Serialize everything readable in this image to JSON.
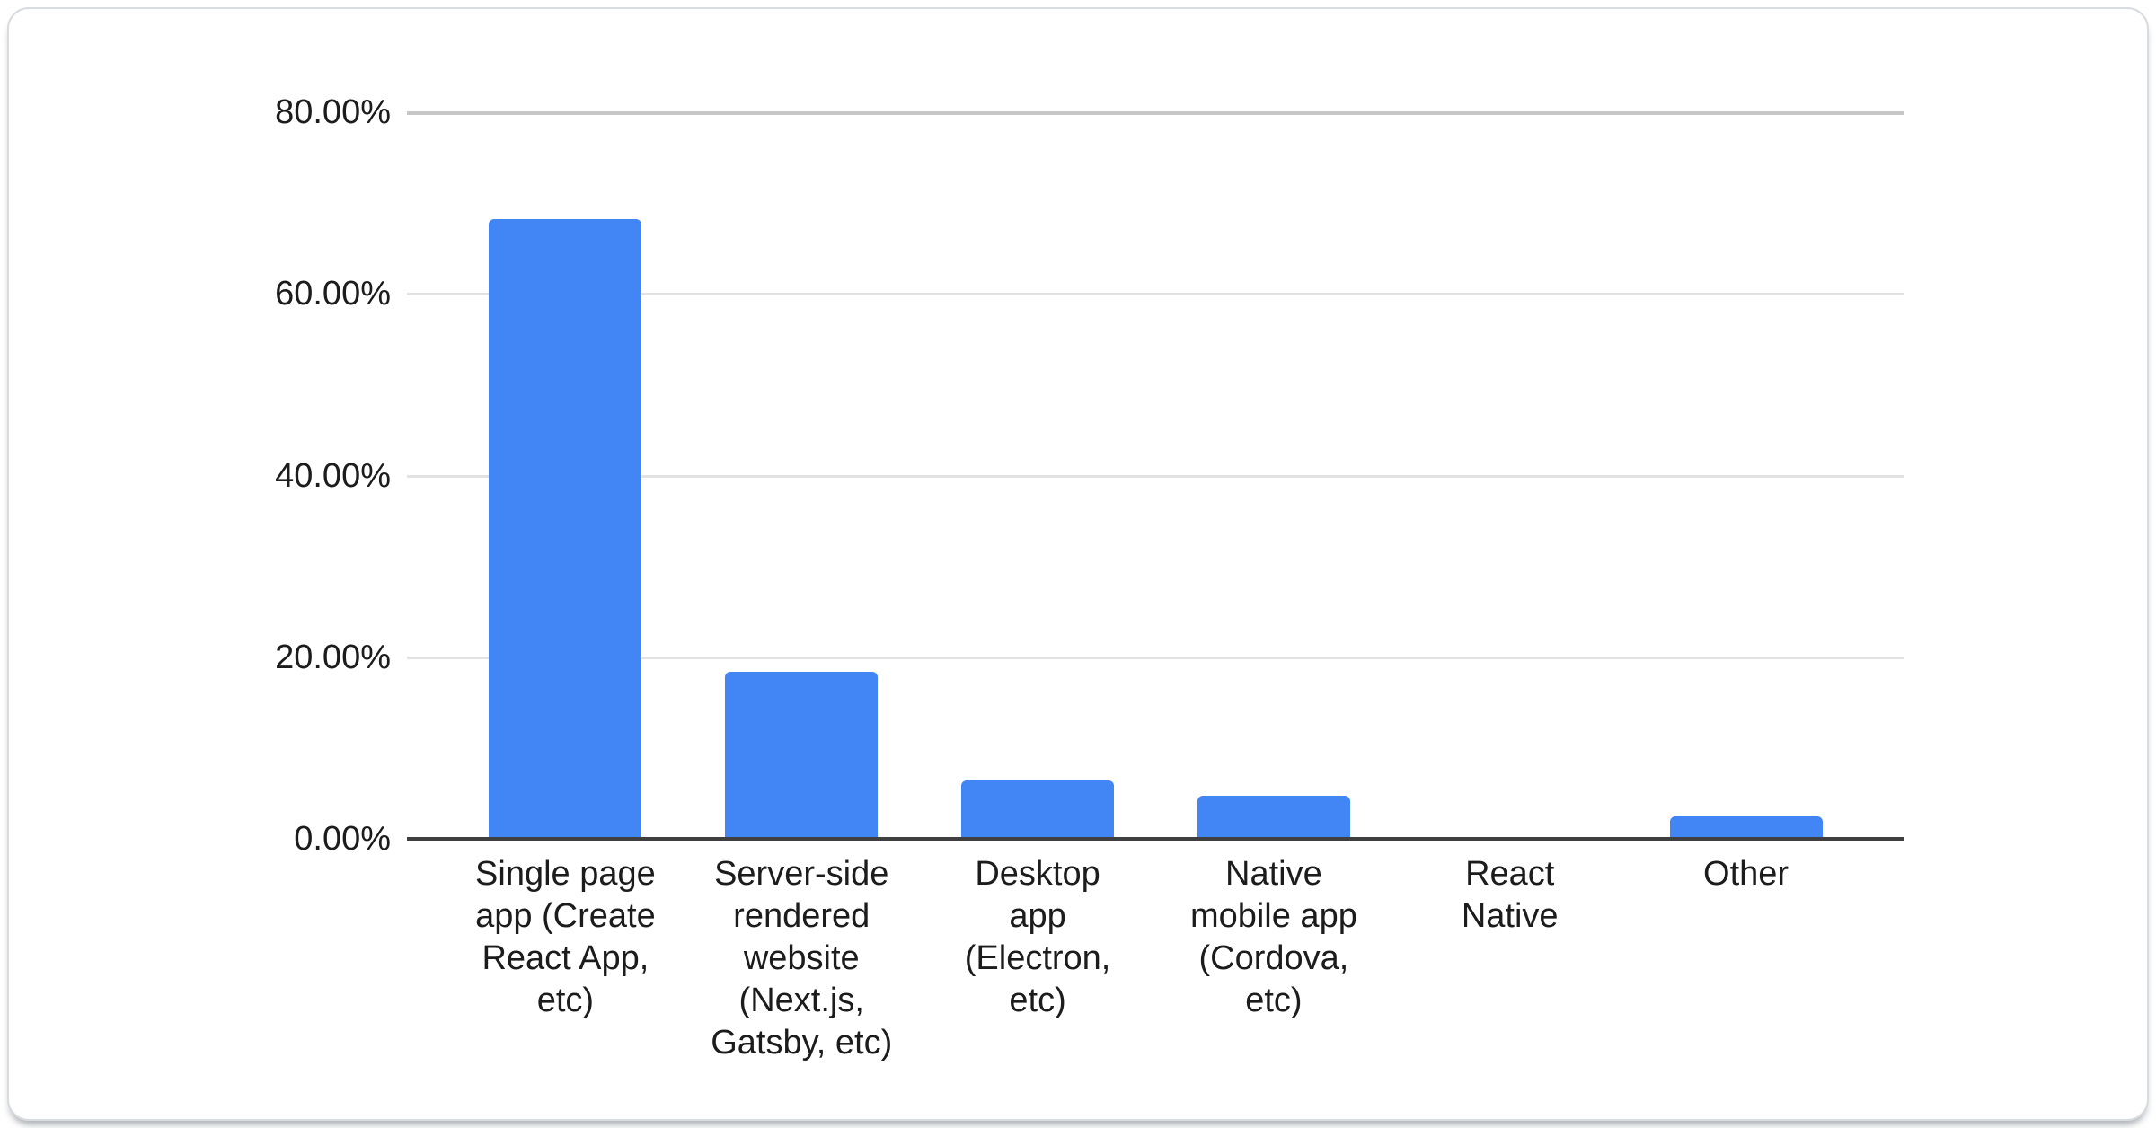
{
  "chart_data": {
    "type": "bar",
    "title": "",
    "xlabel": "",
    "ylabel": "",
    "categories": [
      "Single page app (Create React App, etc)",
      "Server-side rendered website (Next.js, Gatsby, etc)",
      "Desktop app (Electron, etc)",
      "Native mobile app (Cordova, etc)",
      "React Native",
      "Other"
    ],
    "values": [
      68.2,
      18.4,
      6.4,
      4.7,
      0,
      2.5
    ],
    "value_unit": "percent",
    "ylim": [
      0,
      80
    ],
    "yticks": [
      {
        "label": "80.00%",
        "value": 80
      },
      {
        "label": "60.00%",
        "value": 60
      },
      {
        "label": "40.00%",
        "value": 40
      },
      {
        "label": "20.00%",
        "value": 20
      },
      {
        "label": "0.00%",
        "value": 0
      }
    ],
    "grid": true,
    "legend": "none",
    "colors": {
      "bar": "#4285f4",
      "axis": "#3f3f3f",
      "grid": "#e2e2e2",
      "grid-top": "#c7c7c7",
      "text": "#1c1c1c",
      "card-border": "#d8dbdf",
      "card-bg": "#ffffff",
      "page-bg": "#ffffff"
    }
  }
}
